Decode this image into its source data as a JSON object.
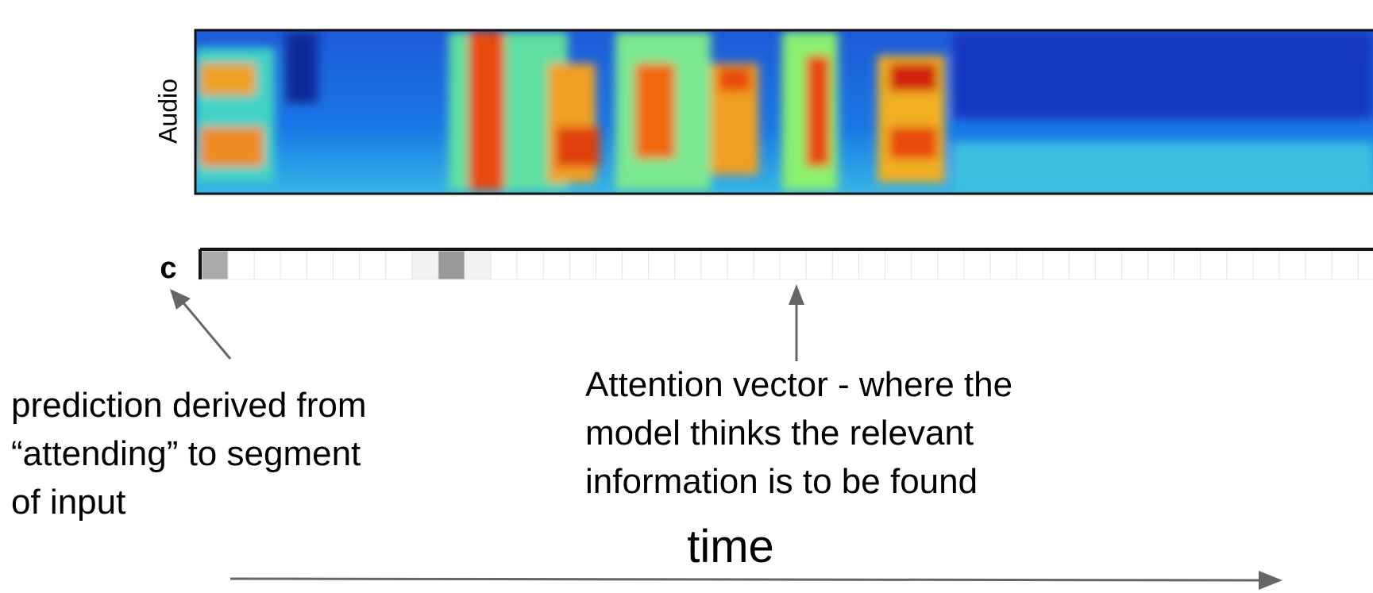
{
  "audio_label": "Audio",
  "prediction_label": "c",
  "left_annotation": {
    "lines": [
      "prediction derived from",
      "“attending” to segment",
      "of input"
    ]
  },
  "middle_annotation": {
    "lines": [
      "Attention vector - where the",
      "model thinks the relevant",
      "information is to be found"
    ]
  },
  "time_label": "time"
}
